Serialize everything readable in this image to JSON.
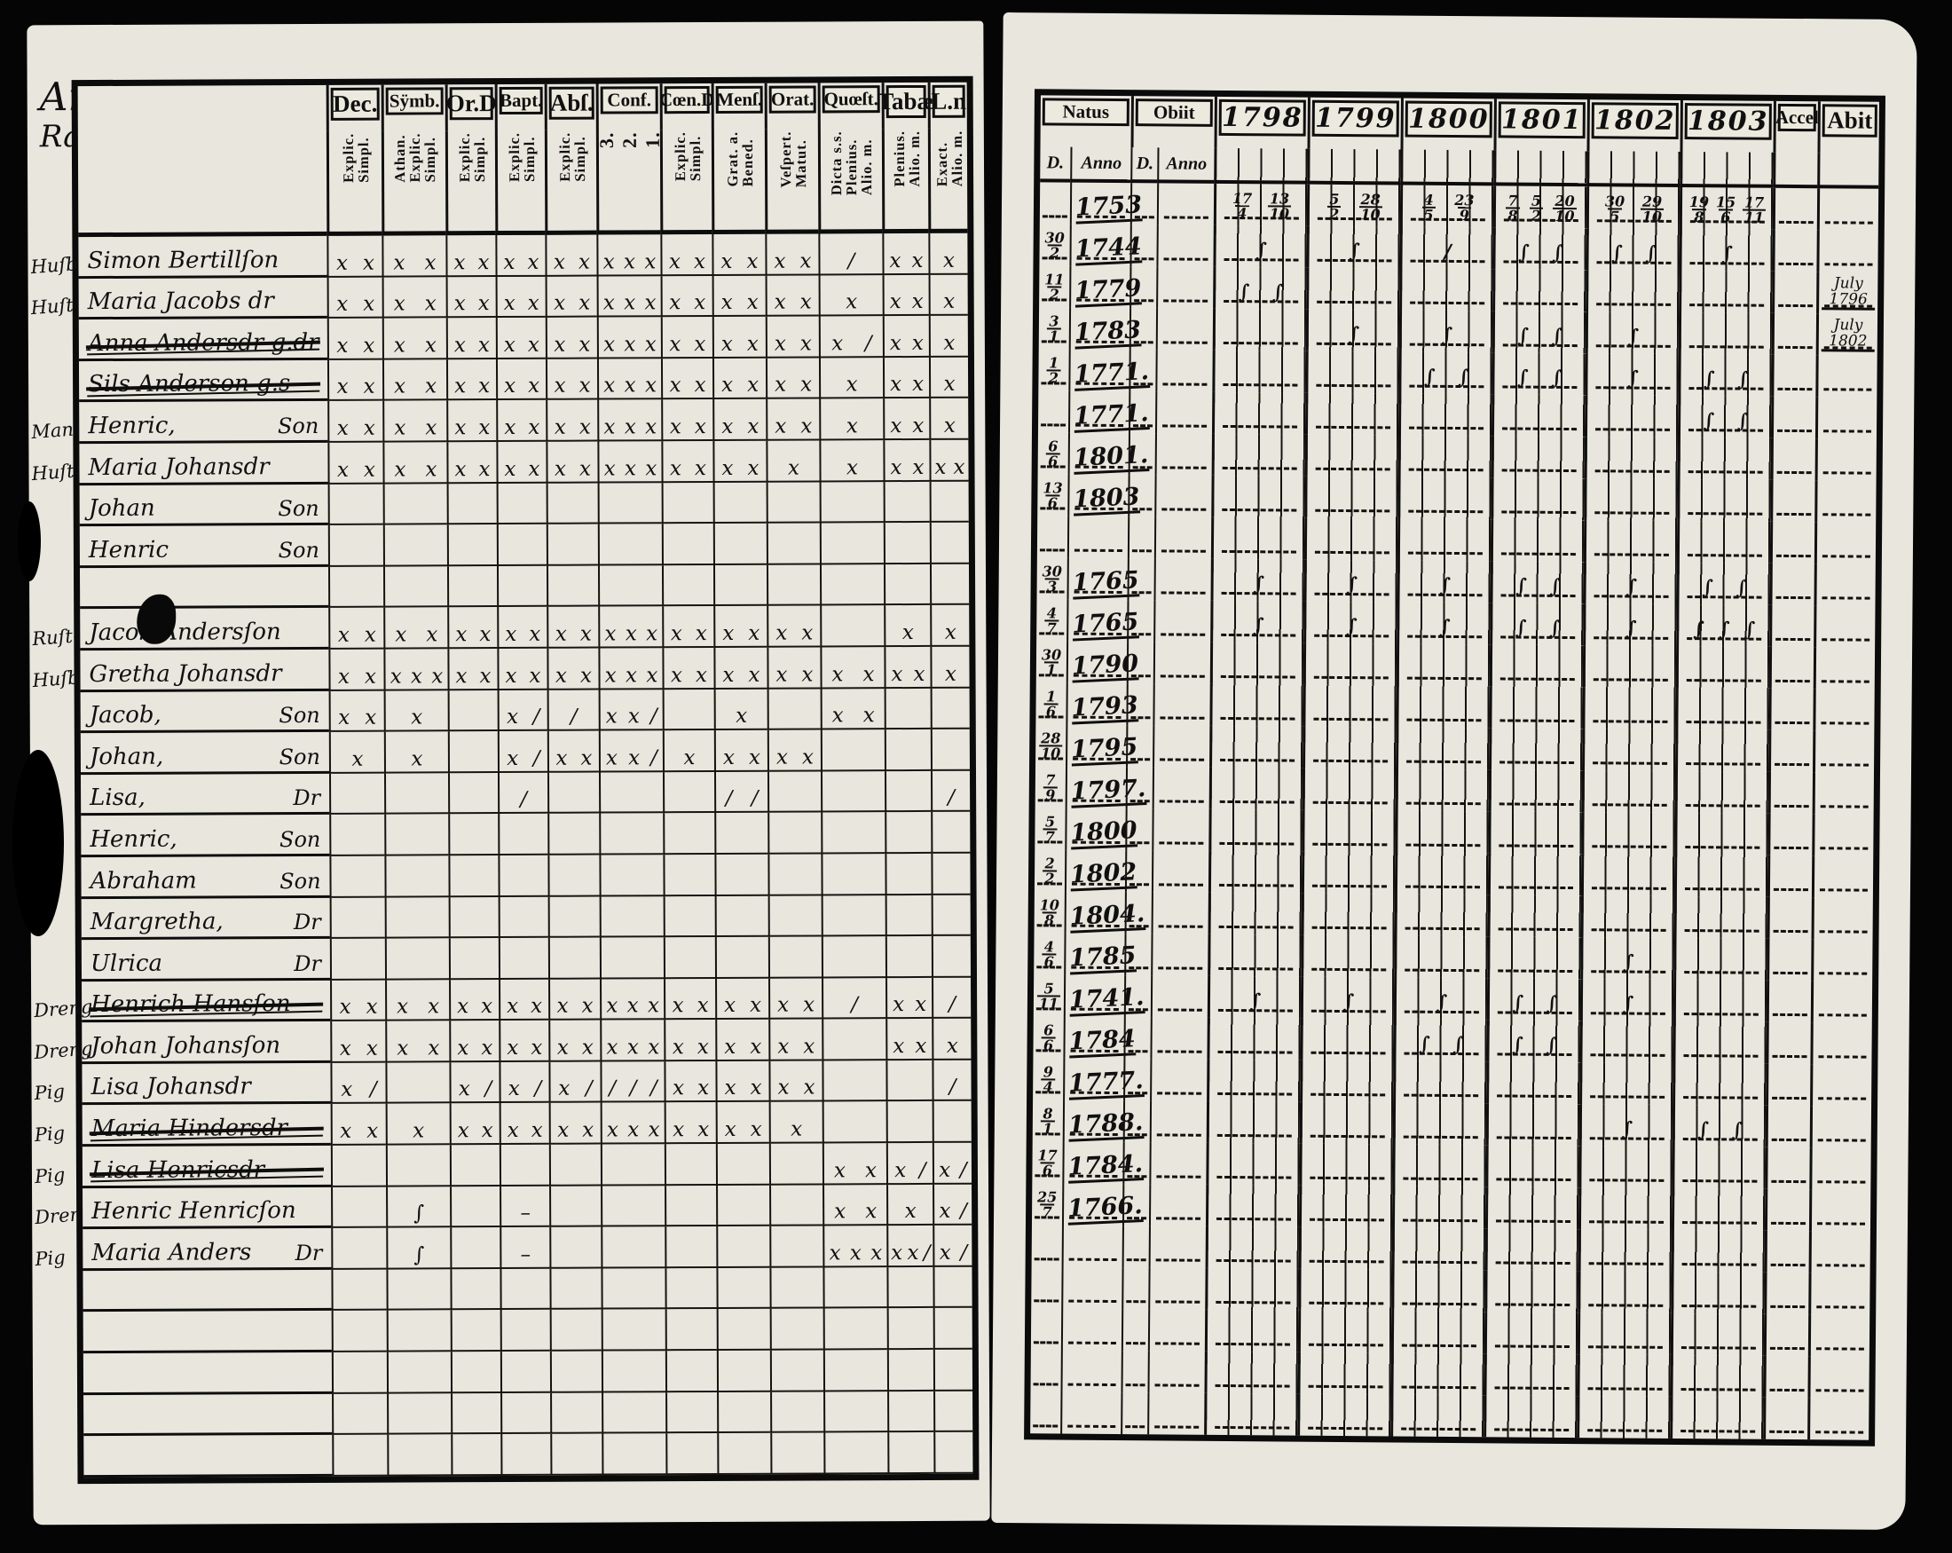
{
  "ink": "#101010",
  "paper": "#e9e6de",
  "left_page": {
    "heading": {
      "line1": "Aro",
      "line2": "Raialais"
    },
    "columns": [
      {
        "label": "Dec.",
        "sub": "Explic.\nSimpl."
      },
      {
        "label": "Sÿmb.",
        "sub": "Athan.\nExplic.\nSimpl."
      },
      {
        "label": "Or.D",
        "sub": "Explic.\nSimpl."
      },
      {
        "label": "Bapt.",
        "sub": "Explic.\nSimpl."
      },
      {
        "label": "Abſ.",
        "sub": "Explic.\nSimpl."
      },
      {
        "label": "Conf.",
        "sub": "3.\n2.\n1.",
        "big": true
      },
      {
        "label": "Cœn.D",
        "sub": "Explic.\nSimpl."
      },
      {
        "label": "Menſ.",
        "sub": "Grat. a.\nBened."
      },
      {
        "label": "Orat.",
        "sub": "Veſpert.\nMatut."
      },
      {
        "label": "Quœſt.",
        "sub": "Dicta s.s.\nPlenius.\nAlio. m."
      },
      {
        "label": "Tabæ",
        "sub": "Plenius.\nAlio. m."
      },
      {
        "label": "L.n",
        "sub": "Exact.\nAlio. m."
      }
    ]
  },
  "right_page": {
    "natus": {
      "label": "Natus",
      "d": "D.",
      "anno": "Anno"
    },
    "obiit": {
      "label": "Obiit",
      "d": "D.",
      "anno": "Anno"
    },
    "years": [
      "1798",
      "1799",
      "1800",
      "1801",
      "1802",
      "1803"
    ],
    "accel": "Accel",
    "abit": "Abit"
  },
  "rows": [
    {
      "m": "Huſb",
      "n": "Simon Bertillſon",
      "s": "",
      "lm": [
        "x x",
        "x x",
        "x x",
        "x x",
        "x x",
        "x x x",
        "x x",
        "x x",
        "x x",
        "/",
        "x x",
        "x"
      ],
      "nd": "",
      "na": "1753",
      "y": [
        [
          "17/4",
          "13/10"
        ],
        [
          "5/2",
          "28/10"
        ],
        [
          "4/5",
          "23/9"
        ],
        [
          "7/8",
          "5/2",
          "20/10"
        ],
        [
          "30/5",
          "29/10"
        ],
        [
          "19/8",
          "15/6",
          "17/11"
        ]
      ],
      "ab": ""
    },
    {
      "m": "Huſt",
      "n": "Maria Jacobs dr",
      "s": "",
      "lm": [
        "x x",
        "x x",
        "x x",
        "x x",
        "x x",
        "x x x",
        "x x",
        "x x",
        "x x",
        "x",
        "x x",
        "x"
      ],
      "nd": "30/2",
      "na": "1744",
      "y": [
        [
          "∫"
        ],
        [
          "∫"
        ],
        [
          "/"
        ],
        [
          "∫",
          "∫"
        ],
        [
          "∫",
          "∫"
        ],
        [
          "∫"
        ]
      ],
      "ab": ""
    },
    {
      "m": "",
      "n": "Anna Andersdr g.dr",
      "s": "",
      "strike": true,
      "lm": [
        "x x",
        "x x",
        "x x",
        "x x",
        "x x",
        "x x x",
        "x x",
        "x x",
        "x x",
        "x /",
        "x x",
        "x"
      ],
      "nd": "11/2",
      "na": "1779",
      "y": [
        [
          "∫",
          "∫"
        ],
        [],
        [],
        [],
        [],
        []
      ],
      "ab": "July 1796"
    },
    {
      "m": "",
      "n": "Sils Anderson g.s",
      "s": "",
      "strike": true,
      "lm": [
        "x x",
        "x x",
        "x x",
        "x x",
        "x x",
        "x x x",
        "x x",
        "x x",
        "x x",
        "x",
        "x x",
        "x"
      ],
      "nd": "3/1",
      "na": "1783",
      "y": [
        [],
        [
          "∫"
        ],
        [
          "∫"
        ],
        [
          "∫",
          "∫"
        ],
        [
          "∫"
        ],
        []
      ],
      "ab": "July 1802"
    },
    {
      "m": "Man",
      "n": "Henric,",
      "s": "Son",
      "lm": [
        "x x",
        "x x",
        "x x",
        "x x",
        "x x",
        "x x x",
        "x x",
        "x x",
        "x x",
        "x",
        "x x",
        "x"
      ],
      "nd": "1/2",
      "na": "1771.",
      "y": [
        [],
        [],
        [
          "∫",
          "∫"
        ],
        [
          "∫",
          "∫"
        ],
        [
          "∫"
        ],
        [
          "∫",
          "∫"
        ]
      ],
      "ab": ""
    },
    {
      "m": "Huſt",
      "n": "Maria Johansdr",
      "s": "",
      "lm": [
        "x x",
        "x x",
        "x x",
        "x x",
        "x x",
        "x x x",
        "x x",
        "x x",
        "x",
        "x",
        "x x",
        "x x"
      ],
      "nd": "",
      "na": "1771.",
      "y": [
        [],
        [],
        [],
        [],
        [],
        [
          "∫",
          "∫"
        ]
      ],
      "ab": ""
    },
    {
      "m": "",
      "n": "Johan",
      "s": "Son",
      "lm": [
        "",
        "",
        "",
        "",
        "",
        "",
        "",
        "",
        "",
        "",
        "",
        ""
      ],
      "nd": "6/6",
      "na": "1801.",
      "y": [
        [],
        [],
        [],
        [],
        [],
        []
      ],
      "ab": ""
    },
    {
      "m": "",
      "n": "Henric",
      "s": "Son",
      "lm": [
        "",
        "",
        "",
        "",
        "",
        "",
        "",
        "",
        "",
        "",
        "",
        ""
      ],
      "nd": "13/6",
      "na": "1803",
      "y": [
        [],
        [],
        [],
        [],
        [],
        []
      ],
      "ab": ""
    },
    {
      "blank": true
    },
    {
      "m": "Ruſt",
      "n": "Jacob Andersſon",
      "s": "",
      "blot": true,
      "lm": [
        "x x",
        "x x",
        "x x",
        "x x",
        "x x",
        "x x x",
        "x x",
        "x x",
        "x x",
        "",
        "x",
        "x"
      ],
      "nd": "30/3",
      "na": "1765",
      "y": [
        [
          "∫"
        ],
        [
          "∫"
        ],
        [
          "∫"
        ],
        [
          "∫",
          "∫"
        ],
        [
          "∫"
        ],
        [
          "∫",
          "∫"
        ]
      ],
      "ab": ""
    },
    {
      "m": "Huſb",
      "n": "Gretha Johansdr",
      "s": "",
      "lm": [
        "x x",
        "x x x",
        "x x",
        "x x",
        "x x",
        "x x x",
        "x x",
        "x x",
        "x x",
        "x x",
        "x x",
        "x"
      ],
      "nd": "4/7",
      "na": "1765",
      "y": [
        [
          "∫"
        ],
        [
          "∫"
        ],
        [
          "∫"
        ],
        [
          "∫",
          "∫"
        ],
        [
          "∫"
        ],
        [
          "∫",
          "∫",
          "∫"
        ]
      ],
      "ab": ""
    },
    {
      "m": "",
      "n": "Jacob,",
      "s": "Son",
      "lm": [
        "x x",
        "x",
        "",
        "x /",
        "/",
        "x x /",
        "",
        "x",
        "",
        "x x",
        "",
        ""
      ],
      "nd": "30/1",
      "na": "1790",
      "y": [
        [],
        [],
        [],
        [],
        [],
        []
      ],
      "ab": ""
    },
    {
      "m": "",
      "n": "Johan,",
      "s": "Son",
      "lm": [
        "x",
        "x",
        "",
        "x /",
        "x x",
        "x x /",
        "x",
        "x x",
        "x x",
        "",
        "",
        ""
      ],
      "nd": "1/6",
      "na": "1793",
      "y": [
        [],
        [],
        [],
        [],
        [],
        []
      ],
      "ab": ""
    },
    {
      "m": "",
      "n": "Lisa,",
      "s": "Dr",
      "lm": [
        "",
        "",
        "",
        "/",
        "",
        "",
        "",
        "/ /",
        "",
        "",
        "",
        "/"
      ],
      "nd": "28/10",
      "na": "1795",
      "y": [
        [],
        [],
        [],
        [],
        [],
        []
      ],
      "ab": ""
    },
    {
      "m": "",
      "n": "Henric,",
      "s": "Son",
      "lm": [
        "",
        "",
        "",
        "",
        "",
        "",
        "",
        "",
        "",
        "",
        "",
        ""
      ],
      "nd": "7/9",
      "na": "1797.",
      "y": [
        [],
        [],
        [],
        [],
        [],
        []
      ],
      "ab": ""
    },
    {
      "m": "",
      "n": "Abraham",
      "s": "Son",
      "lm": [
        "",
        "",
        "",
        "",
        "",
        "",
        "",
        "",
        "",
        "",
        "",
        ""
      ],
      "nd": "5/7",
      "na": "1800",
      "y": [
        [],
        [],
        [],
        [],
        [],
        []
      ],
      "ab": ""
    },
    {
      "m": "",
      "n": "Margretha,",
      "s": "Dr",
      "lm": [
        "",
        "",
        "",
        "",
        "",
        "",
        "",
        "",
        "",
        "",
        "",
        ""
      ],
      "nd": "2/2",
      "na": "1802",
      "y": [
        [],
        [],
        [],
        [],
        [],
        []
      ],
      "ab": ""
    },
    {
      "m": "",
      "n": "Ulrica",
      "s": "Dr",
      "lm": [
        "",
        "",
        "",
        "",
        "",
        "",
        "",
        "",
        "",
        "",
        "",
        ""
      ],
      "nd": "10/8",
      "na": "1804.",
      "y": [
        [],
        [],
        [],
        [],
        [],
        []
      ],
      "ab": ""
    },
    {
      "m": "Dreng",
      "n": "Henrich Hansſon",
      "s": "",
      "strike": true,
      "lm": [
        "x x",
        "x x",
        "x x",
        "x x",
        "x x",
        "x x x",
        "x x",
        "x x",
        "x x",
        "/",
        "x x",
        "/"
      ],
      "nd": "4/6",
      "na": "1785",
      "y": [
        [],
        [],
        [],
        [],
        [
          "∫"
        ],
        []
      ],
      "ab": ""
    },
    {
      "m": "Dreng",
      "n": "Johan Johansſon",
      "s": "",
      "lm": [
        "x x",
        "x x",
        "x x",
        "x x",
        "x x",
        "x x x",
        "x x",
        "x x",
        "x x",
        "",
        "x x",
        "x"
      ],
      "nd": "5/11",
      "na": "1741.",
      "y": [
        [
          "∫"
        ],
        [
          "∫"
        ],
        [
          "∫"
        ],
        [
          "∫",
          "∫"
        ],
        [
          "∫"
        ],
        []
      ],
      "ab": ""
    },
    {
      "m": "Pig",
      "n": "Lisa Johansdr",
      "s": "",
      "lm": [
        "x /",
        "",
        "x /",
        "x /",
        "x /",
        "/ / /",
        "x x",
        "x x",
        "x x",
        "",
        "",
        "/"
      ],
      "nd": "6/6",
      "na": "1784",
      "y": [
        [],
        [],
        [
          "∫",
          "∫"
        ],
        [
          "∫",
          "∫"
        ],
        [],
        []
      ],
      "ab": ""
    },
    {
      "m": "Pig",
      "n": "Maria Hindersdr",
      "s": "",
      "strike": true,
      "lm": [
        "x x",
        "x",
        "x x",
        "x x",
        "x x",
        "x x x",
        "x x",
        "x x",
        "x",
        "",
        "",
        ""
      ],
      "nd": "9/4",
      "na": "1777.",
      "y": [
        [],
        [],
        [],
        [],
        [],
        []
      ],
      "ab": ""
    },
    {
      "m": "Pig",
      "n": "Lisa Henricsdr",
      "s": "",
      "strike": true,
      "lm": [
        "",
        "",
        "",
        "",
        "",
        "",
        "",
        "",
        "",
        "x x",
        "x /",
        "x /"
      ],
      "nd": "8/1",
      "na": "1788.",
      "y": [
        [],
        [],
        [],
        [],
        [
          "∫"
        ],
        [
          "∫",
          "∫"
        ]
      ],
      "ab": ""
    },
    {
      "m": "Dren",
      "n": "Henric Henricſon",
      "s": "",
      "lm": [
        "",
        "∫",
        "",
        "–",
        "",
        "",
        "",
        "",
        "",
        "x x",
        "x",
        "x /"
      ],
      "nd": "17/6",
      "na": "1784.",
      "y": [
        [],
        [],
        [],
        [],
        [],
        []
      ],
      "ab": ""
    },
    {
      "m": "Pig",
      "n": "Maria Anders",
      "s": "Dr",
      "lm": [
        "",
        "∫",
        "",
        "–",
        "",
        "",
        "",
        "",
        "",
        "x x x",
        "x x /",
        "x /"
      ],
      "nd": "25/7",
      "na": "1766.",
      "y": [
        [],
        [],
        [],
        [],
        [],
        []
      ],
      "ab": ""
    },
    {
      "blank": true
    },
    {
      "blank": true
    },
    {
      "blank": true
    },
    {
      "blank": true
    },
    {
      "blank": true
    }
  ]
}
